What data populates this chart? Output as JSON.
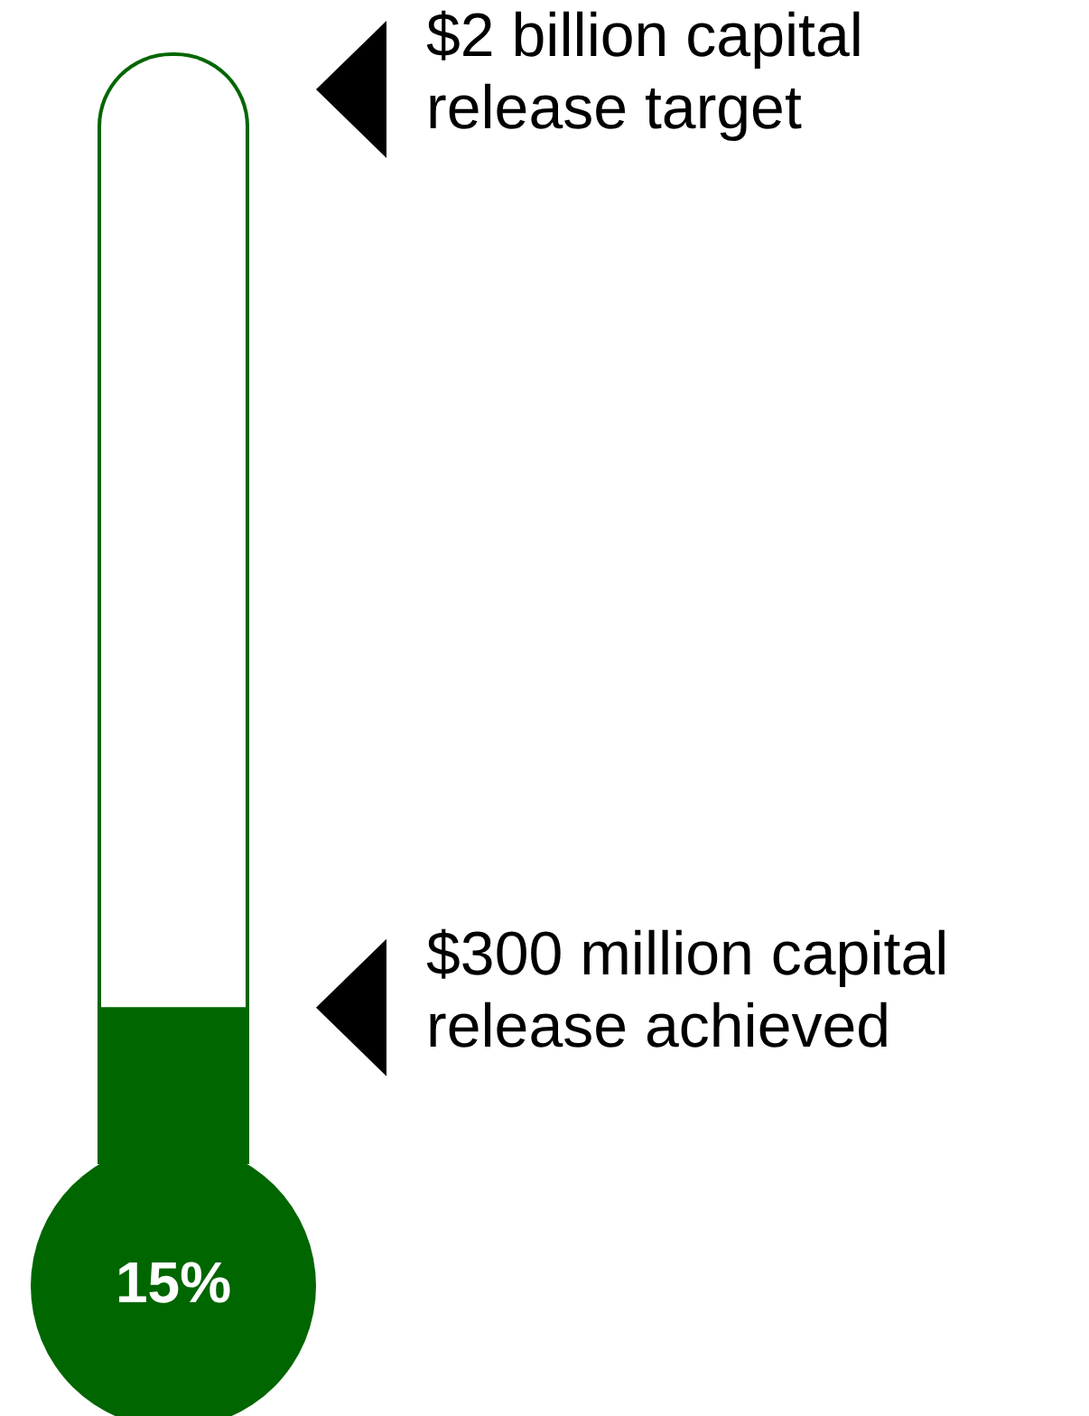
{
  "chart_data": {
    "type": "bar",
    "categories": [
      null
    ],
    "values": [
      15
    ],
    "value_labels": [
      "15%"
    ],
    "color": "#006600",
    "ylim": [
      0,
      100
    ],
    "tick_labels": false,
    "grid": false,
    "legend": false,
    "annotations": [
      "$2 billion capital release target",
      "$300 million capital release achieved"
    ]
  }
}
